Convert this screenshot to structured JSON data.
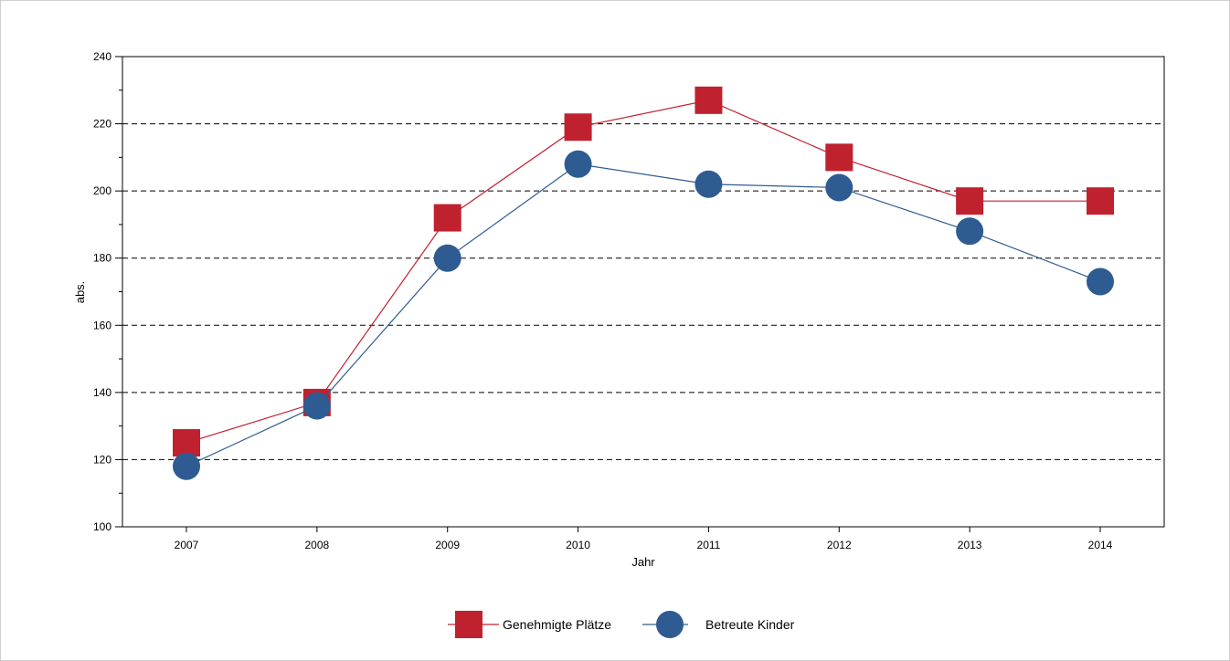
{
  "chart_data": {
    "type": "line",
    "title": "",
    "xlabel": "Jahr",
    "ylabel": "abs.",
    "categories": [
      "2007",
      "2008",
      "2009",
      "2010",
      "2011",
      "2012",
      "2013",
      "2014"
    ],
    "ylim": [
      100,
      240
    ],
    "yticks": [
      100,
      120,
      140,
      160,
      180,
      200,
      220,
      240
    ],
    "grid": "horizontal dashed at 120, 140, 160, 180, 200, 220",
    "legend_position": "bottom-center",
    "series": [
      {
        "name": "Genehmigte Plätze",
        "marker": "square",
        "color": "#C0212F",
        "values": [
          125,
          137,
          192,
          219,
          227,
          210,
          197,
          197
        ]
      },
      {
        "name": "Betreute Kinder",
        "marker": "circle",
        "color": "#2E5B91",
        "values": [
          118,
          136,
          180,
          208,
          202,
          201,
          188,
          173
        ]
      }
    ]
  }
}
